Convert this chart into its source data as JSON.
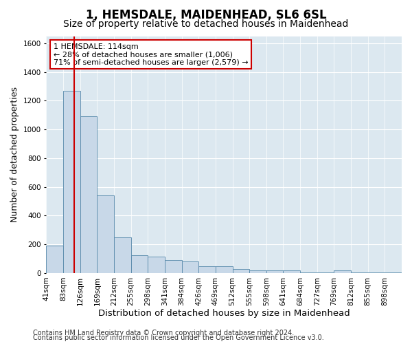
{
  "title1": "1, HEMSDALE, MAIDENHEAD, SL6 6SL",
  "title2": "Size of property relative to detached houses in Maidenhead",
  "xlabel": "Distribution of detached houses by size in Maidenhead",
  "ylabel": "Number of detached properties",
  "bin_labels": [
    "41sqm",
    "83sqm",
    "126sqm",
    "169sqm",
    "212sqm",
    "255sqm",
    "298sqm",
    "341sqm",
    "384sqm",
    "426sqm",
    "469sqm",
    "512sqm",
    "555sqm",
    "598sqm",
    "641sqm",
    "684sqm",
    "727sqm",
    "769sqm",
    "812sqm",
    "855sqm",
    "898sqm"
  ],
  "bin_edges": [
    0,
    1,
    2,
    3,
    4,
    5,
    6,
    7,
    8,
    9,
    10,
    11,
    12,
    13,
    14,
    15,
    16,
    17,
    18,
    19,
    20,
    21
  ],
  "bar_heights": [
    190,
    1270,
    1090,
    540,
    250,
    125,
    115,
    90,
    80,
    50,
    50,
    30,
    20,
    20,
    20,
    5,
    5,
    20,
    5,
    5,
    5
  ],
  "bar_color": "#c8d8e8",
  "bar_edge_color": "#5588aa",
  "vline_bin": 1.65,
  "vline_color": "#cc0000",
  "annotation_text": "1 HEMSDALE: 114sqm\n← 28% of detached houses are smaller (1,006)\n71% of semi-detached houses are larger (2,579) →",
  "annotation_box_facecolor": "#ffffff",
  "annotation_box_edgecolor": "#cc0000",
  "ylim": [
    0,
    1650
  ],
  "yticks": [
    0,
    200,
    400,
    600,
    800,
    1000,
    1200,
    1400,
    1600
  ],
  "footer1": "Contains HM Land Registry data © Crown copyright and database right 2024.",
  "footer2": "Contains public sector information licensed under the Open Government Licence v3.0.",
  "fig_bg_color": "#ffffff",
  "plot_bg_color": "#dce8f0",
  "title1_fontsize": 12,
  "title2_fontsize": 10,
  "tick_fontsize": 7.5,
  "ylabel_fontsize": 9,
  "xlabel_fontsize": 9.5,
  "footer_fontsize": 7,
  "annotation_fontsize": 8
}
